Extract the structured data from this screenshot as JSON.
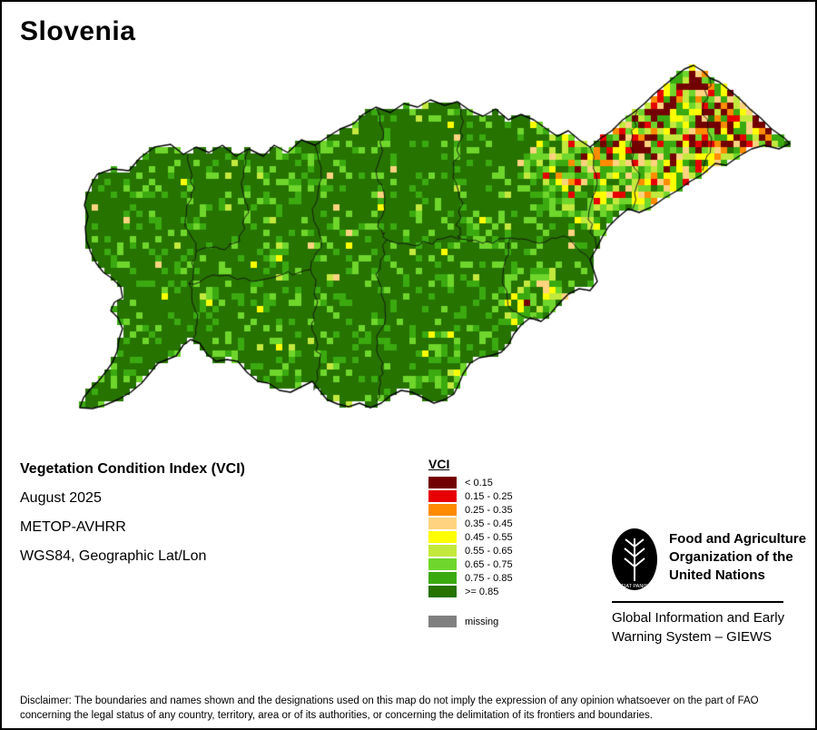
{
  "title": "Slovenia",
  "info": {
    "heading": "Vegetation Condition Index (VCI)",
    "date": "August 2025",
    "sensor": "METOP-AVHRR",
    "projection": "WGS84, Geographic Lat/Lon"
  },
  "legend": {
    "title": "VCI",
    "classes": [
      {
        "label": "< 0.15",
        "color": "#730000"
      },
      {
        "label": "0.15 - 0.25",
        "color": "#e60000"
      },
      {
        "label": "0.25 - 0.35",
        "color": "#ff8c00"
      },
      {
        "label": "0.35 - 0.45",
        "color": "#ffd37f"
      },
      {
        "label": "0.45 - 0.55",
        "color": "#ffff00"
      },
      {
        "label": "0.55 - 0.65",
        "color": "#c3e93d"
      },
      {
        "label": "0.65 - 0.75",
        "color": "#6fd62c"
      },
      {
        "label": "0.75 - 0.85",
        "color": "#3aaa10"
      },
      {
        "label": ">= 0.85",
        "color": "#267300"
      }
    ],
    "missing": {
      "label": "missing",
      "color": "#808080"
    }
  },
  "footer": {
    "org_lines": [
      "Food and Agriculture",
      "Organization of the",
      "United Nations"
    ],
    "logo_motto": "FIAT PANIS",
    "giews_lines": [
      "Global Information and Early",
      "Warning System – GIEWS"
    ]
  },
  "disclaimer_lines": [
    "Disclaimer: The boundaries and names shown and the designations used on this map do not imply the expression of any opinion whatsoever on the part of FAO",
    "concerning the legal status of any country, territory, area or of its authorities, or concerning the delimitation of its frontiers and boundaries."
  ],
  "map_colors": {
    "outline": "#000000",
    "region_boundary": "#111111"
  }
}
